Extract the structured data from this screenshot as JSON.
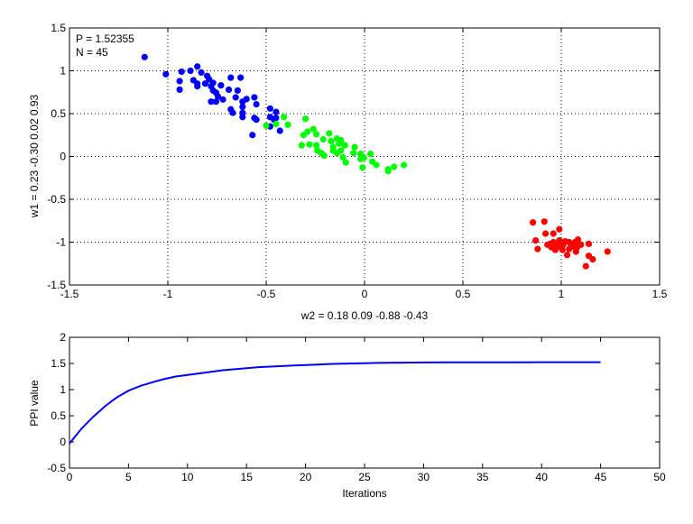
{
  "chart_data": [
    {
      "type": "scatter",
      "title": "",
      "xlabel": "w2 = 0.18  0.09  -0.88  -0.43",
      "ylabel": "w1 = 0.23  -0.30  0.02  0.93",
      "xlim": [
        -1.5,
        1.5
      ],
      "ylim": [
        -1.5,
        1.5
      ],
      "xticks": [
        "-1.5",
        "-1",
        "-0.5",
        "0",
        "0.5",
        "1",
        "1.5"
      ],
      "yticks": [
        "-1.5",
        "-1",
        "-0.5",
        "0",
        "0.5",
        "1",
        "1.5"
      ],
      "grid": true,
      "annotations": [
        "P = 1.52355",
        "N = 45"
      ],
      "series": [
        {
          "color": "#0000ff",
          "points": [
            [
              -1.118,
              1.16
            ],
            [
              -1.01,
              0.96
            ],
            [
              -0.93,
              0.99
            ],
            [
              -0.885,
              1.0
            ],
            [
              -0.85,
              1.05
            ],
            [
              -0.83,
              0.98
            ],
            [
              -0.94,
              0.88
            ],
            [
              -0.94,
              0.78
            ],
            [
              -0.87,
              0.89
            ],
            [
              -0.85,
              0.85
            ],
            [
              -0.85,
              0.82
            ],
            [
              -0.8,
              0.94
            ],
            [
              -0.81,
              0.85
            ],
            [
              -0.78,
              0.82
            ],
            [
              -0.77,
              0.77
            ],
            [
              -0.755,
              0.745
            ],
            [
              -0.745,
              0.7
            ],
            [
              -0.72,
              0.665
            ],
            [
              -0.78,
              0.64
            ],
            [
              -0.755,
              0.64
            ],
            [
              -0.73,
              0.83
            ],
            [
              -0.68,
              0.92
            ],
            [
              -0.63,
              0.92
            ],
            [
              -0.69,
              0.78
            ],
            [
              -0.645,
              0.77
            ],
            [
              -0.655,
              0.69
            ],
            [
              -0.62,
              0.64
            ],
            [
              -0.6,
              0.67
            ],
            [
              -0.56,
              0.69
            ],
            [
              -0.55,
              0.61
            ],
            [
              -0.62,
              0.58
            ],
            [
              -0.68,
              0.55
            ],
            [
              -0.67,
              0.51
            ],
            [
              -0.62,
              0.51
            ],
            [
              -0.62,
              0.46
            ],
            [
              -0.56,
              0.45
            ],
            [
              -0.55,
              0.43
            ],
            [
              -0.57,
              0.25
            ],
            [
              -0.48,
              0.56
            ],
            [
              -0.45,
              0.52
            ],
            [
              -0.48,
              0.46
            ],
            [
              -0.46,
              0.43
            ],
            [
              -0.45,
              0.45
            ],
            [
              -0.48,
              0.35
            ],
            [
              -0.43,
              0.3
            ],
            [
              -0.79,
              0.9
            ],
            [
              -0.77,
              0.86
            ]
          ]
        },
        {
          "color": "#00ff00",
          "points": [
            [
              -0.5,
              0.36
            ],
            [
              -0.45,
              0.38
            ],
            [
              -0.41,
              0.46
            ],
            [
              -0.39,
              0.37
            ],
            [
              -0.3,
              0.44
            ],
            [
              -0.32,
              0.13
            ],
            [
              -0.31,
              0.25
            ],
            [
              -0.29,
              0.29
            ],
            [
              -0.28,
              0.14
            ],
            [
              -0.26,
              0.32
            ],
            [
              -0.245,
              0.26
            ],
            [
              -0.245,
              0.13
            ],
            [
              -0.24,
              0.07
            ],
            [
              -0.22,
              0.04
            ],
            [
              -0.205,
              0.01
            ],
            [
              -0.21,
              0.2
            ],
            [
              -0.18,
              0.27
            ],
            [
              -0.17,
              0.18
            ],
            [
              -0.16,
              0.11
            ],
            [
              -0.16,
              0.07
            ],
            [
              -0.14,
              0.21
            ],
            [
              -0.13,
              0.15
            ],
            [
              -0.12,
              0.19
            ],
            [
              -0.14,
              0.04
            ],
            [
              -0.12,
              0.07
            ],
            [
              -0.1,
              0.13
            ],
            [
              -0.11,
              -0.01
            ],
            [
              -0.095,
              -0.07
            ],
            [
              -0.05,
              0.11
            ],
            [
              -0.056,
              0.04
            ],
            [
              -0.02,
              0.03
            ],
            [
              -0.003,
              -0.016
            ],
            [
              -0.02,
              -0.03
            ],
            [
              0.03,
              0.03
            ],
            [
              -0.01,
              -0.13
            ],
            [
              0.04,
              -0.06
            ],
            [
              0.06,
              -0.1
            ],
            [
              0.12,
              -0.15
            ],
            [
              0.12,
              -0.17
            ],
            [
              0.15,
              -0.12
            ],
            [
              0.2,
              -0.1
            ]
          ]
        },
        {
          "color": "#ff0000",
          "points": [
            [
              0.856,
              -0.77
            ],
            [
              0.914,
              -0.76
            ],
            [
              0.92,
              -0.9
            ],
            [
              0.99,
              -0.85
            ],
            [
              0.96,
              -0.9
            ],
            [
              0.87,
              -0.98
            ],
            [
              0.88,
              -1.08
            ],
            [
              0.945,
              -1.02
            ],
            [
              0.97,
              -1.09
            ],
            [
              0.99,
              -0.98
            ],
            [
              1.01,
              -1.03
            ],
            [
              1.006,
              -1.09
            ],
            [
              1.03,
              -1.15
            ],
            [
              1.04,
              -1.0
            ],
            [
              1.06,
              -1.05
            ],
            [
              1.075,
              -1.11
            ],
            [
              1.085,
              -0.97
            ],
            [
              1.1,
              -1.03
            ],
            [
              1.14,
              -1.02
            ],
            [
              1.14,
              -1.16
            ],
            [
              1.16,
              -1.2
            ],
            [
              1.125,
              -1.28
            ],
            [
              1.235,
              -1.11
            ],
            [
              1.0,
              -1.0
            ],
            [
              0.98,
              -1.04
            ],
            [
              1.02,
              -0.99
            ],
            [
              1.05,
              -1.02
            ],
            [
              0.95,
              -1.06
            ],
            [
              1.08,
              -1.06
            ],
            [
              0.96,
              -1.0
            ],
            [
              1.0,
              -1.06
            ],
            [
              1.04,
              -1.08
            ],
            [
              0.93,
              -1.03
            ],
            [
              1.07,
              -1.0
            ]
          ]
        }
      ]
    },
    {
      "type": "line",
      "title": "",
      "xlabel": "Iterations",
      "ylabel": "PPI value",
      "xlim": [
        0,
        50
      ],
      "ylim": [
        -0.5,
        2
      ],
      "xticks": [
        "0",
        "5",
        "10",
        "15",
        "20",
        "25",
        "30",
        "35",
        "40",
        "45",
        "50"
      ],
      "yticks": [
        "-0.5",
        "0",
        "0.5",
        "1",
        "1.5",
        "2"
      ],
      "grid": false,
      "series": [
        {
          "color": "#0000ff",
          "x": [
            0,
            1,
            2,
            3,
            4,
            5,
            6,
            7,
            8,
            9,
            10,
            11,
            12,
            13,
            14,
            15,
            16,
            17,
            18,
            19,
            20,
            21,
            22,
            23,
            24,
            25,
            26,
            27,
            28,
            29,
            30,
            32,
            34,
            36,
            38,
            40,
            42,
            45
          ],
          "y": [
            -0.03,
            0.25,
            0.48,
            0.68,
            0.85,
            0.98,
            1.07,
            1.14,
            1.2,
            1.25,
            1.28,
            1.31,
            1.34,
            1.37,
            1.39,
            1.41,
            1.43,
            1.44,
            1.45,
            1.46,
            1.47,
            1.48,
            1.49,
            1.495,
            1.5,
            1.505,
            1.51,
            1.512,
            1.515,
            1.517,
            1.519,
            1.52,
            1.521,
            1.522,
            1.523,
            1.5233,
            1.5235,
            1.52355
          ]
        }
      ]
    }
  ]
}
